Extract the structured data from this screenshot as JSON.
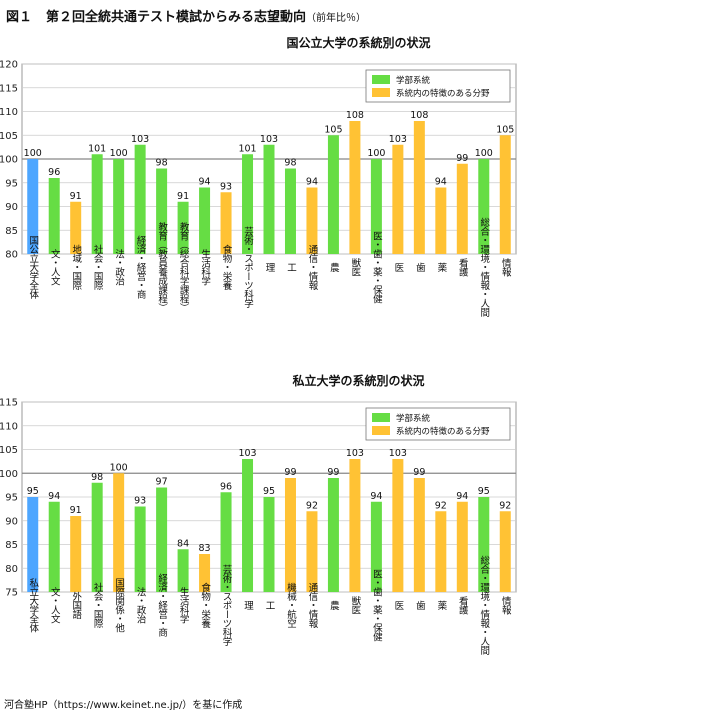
{
  "figure": {
    "label": "図１",
    "title": "第２回全統共通テスト模試からみる志望動向",
    "title_note": "（前年比％）"
  },
  "source": "河合塾HP（https://www.keinet.ne.jp/）を基に作成",
  "colors": {
    "overall": "#4da6ff",
    "department": "#66dd44",
    "field": "#ffc234",
    "reference_line": "#888888",
    "grid": "#cccccc"
  },
  "chart_data": [
    {
      "type": "bar",
      "title": "国公立大学の系統別の状況",
      "ylim": [
        80,
        120
      ],
      "yticks": [
        80,
        85,
        90,
        95,
        100,
        105,
        110,
        115,
        120
      ],
      "reference_line": 100,
      "grid": true,
      "legend_position": "top-right",
      "legend": [
        {
          "label": "学部系統",
          "color_key": "department"
        },
        {
          "label": "系統内の特徴のある分野",
          "color_key": "field"
        }
      ],
      "categories": [
        "国公立大学全体",
        "文・人文",
        "地域・国際",
        "社会・国際",
        "法・政治",
        "経済・経営・商",
        "教育（教員養成課程）",
        "教育（総合科学課程）",
        "生活科学",
        "食物・栄養",
        "芸術・スポーツ科学",
        "理",
        "工",
        "通信・情報",
        "農",
        "獣医",
        "医・歯・薬・保健",
        "医",
        "歯",
        "薬",
        "看護",
        "総合・環境・情報・人間",
        "情報"
      ],
      "values": [
        100,
        96,
        91,
        101,
        100,
        103,
        98,
        91,
        94,
        93,
        101,
        103,
        98,
        94,
        105,
        108,
        100,
        103,
        108,
        94,
        99,
        100,
        105
      ],
      "bar_types": [
        "overall",
        "department",
        "field",
        "department",
        "department",
        "department",
        "department",
        "department",
        "department",
        "field",
        "department",
        "department",
        "department",
        "field",
        "department",
        "field",
        "department",
        "field",
        "field",
        "field",
        "field",
        "department",
        "field"
      ]
    },
    {
      "type": "bar",
      "title": "私立大学の系統別の状況",
      "ylim": [
        75,
        115
      ],
      "yticks": [
        75,
        80,
        85,
        90,
        95,
        100,
        105,
        110,
        115
      ],
      "reference_line": 100,
      "grid": true,
      "legend_position": "top-right",
      "legend": [
        {
          "label": "学部系統",
          "color_key": "department"
        },
        {
          "label": "系統内の特徴のある分野",
          "color_key": "field"
        }
      ],
      "categories": [
        "私立大学全体",
        "文・人文",
        "外国語",
        "社会・国際",
        "国際関係・他",
        "法・政治",
        "経済・経営・商",
        "生活科学",
        "食物・栄養",
        "芸術・スポーツ科学",
        "理",
        "工",
        "機械・航空",
        "通信・情報",
        "農",
        "獣医",
        "医・歯・薬・保健",
        "医",
        "歯",
        "薬",
        "看護",
        "総合・環境・情報・人間",
        "情報"
      ],
      "values": [
        95,
        94,
        91,
        98,
        100,
        93,
        97,
        84,
        83,
        96,
        103,
        95,
        99,
        92,
        99,
        103,
        94,
        103,
        99,
        92,
        94,
        95,
        92
      ],
      "bar_types": [
        "overall",
        "department",
        "field",
        "department",
        "field",
        "department",
        "department",
        "department",
        "field",
        "department",
        "department",
        "department",
        "field",
        "field",
        "department",
        "field",
        "department",
        "field",
        "field",
        "field",
        "field",
        "department",
        "field"
      ]
    }
  ]
}
